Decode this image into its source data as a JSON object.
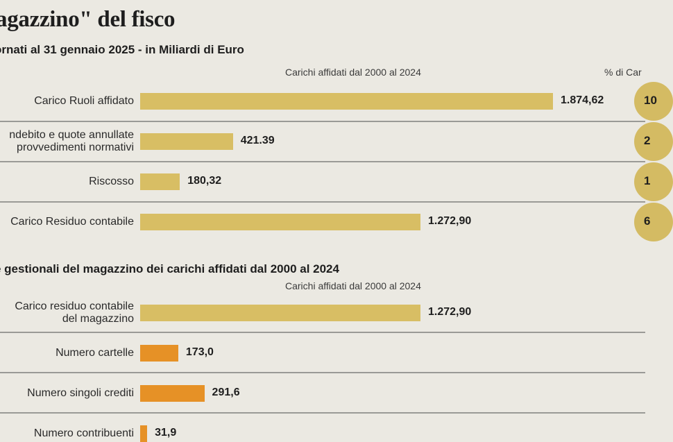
{
  "title": "agazzino\" del fisco",
  "section1": {
    "subtitle": "ornati al 31 gennaio 2025 - in Miliardi di Euro",
    "col_header": "Carichi affidati dal 2000 al 2024",
    "pct_header": "% di Car",
    "rows": [
      {
        "label": "Carico Ruoli affidato",
        "value": 1874.62,
        "value_label": "1.874,62",
        "pct_label": "10"
      },
      {
        "label": "ndebito e quote annullate\nprovvedimenti normativi",
        "value": 421.39,
        "value_label": "421.39",
        "pct_label": "2"
      },
      {
        "label": "Riscosso",
        "value": 180.32,
        "value_label": "180,32",
        "pct_label": "1"
      },
      {
        "label": "Carico Residuo contabile",
        "value": 1272.9,
        "value_label": "1.272,90",
        "pct_label": "6"
      }
    ]
  },
  "section2": {
    "subtitle": "e gestionali del magazzino dei carichi affidati dal 2000 al 2024",
    "col_header": "Carichi affidati dal 2000 al 2024",
    "rows": [
      {
        "label": "Carico residuo contabile\ndel magazzino",
        "value": 1272.9,
        "value_label": "1.272,90",
        "color": "#d8be64"
      },
      {
        "label": "Numero cartelle",
        "value": 173.0,
        "value_label": "173,0",
        "color": "#e69126"
      },
      {
        "label": "Numero singoli crediti",
        "value": 291.6,
        "value_label": "291,6",
        "color": "#e69126"
      },
      {
        "label": "Numero contribuenti",
        "value": 31.9,
        "value_label": "31,9",
        "color": "#e69126"
      }
    ]
  },
  "colors": {
    "bar_gold": "#d8be64",
    "bar_orange": "#e69126",
    "circle": "#d4bb63"
  },
  "chart_data": [
    {
      "type": "bar",
      "title": "ornati al 31 gennaio 2025 - in Miliardi di Euro",
      "categories": [
        "Carico Ruoli affidato",
        "ndebito e quote annullate provvedimenti normativi",
        "Riscosso",
        "Carico Residuo contabile"
      ],
      "series": [
        {
          "name": "Carichi affidati dal 2000 al 2024",
          "values": [
            1874.62,
            421.39,
            180.32,
            1272.9
          ]
        }
      ],
      "orientation": "horizontal",
      "grid": false
    },
    {
      "type": "bar",
      "title": "e gestionali del magazzino dei carichi affidati dal 2000 al 2024",
      "categories": [
        "Carico residuo contabile del magazzino",
        "Numero cartelle",
        "Numero singoli crediti",
        "Numero contribuenti"
      ],
      "series": [
        {
          "name": "Carichi affidati dal 2000 al 2024",
          "values": [
            1272.9,
            173.0,
            291.6,
            31.9
          ]
        }
      ],
      "orientation": "horizontal",
      "grid": false
    }
  ]
}
